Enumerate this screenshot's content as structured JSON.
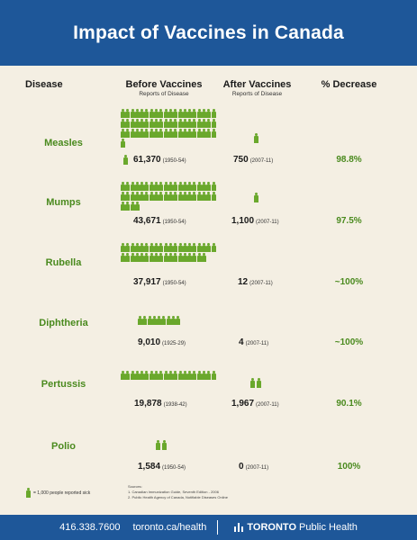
{
  "header": {
    "title": "Impact of Vaccines in Canada"
  },
  "columns": {
    "disease": "Disease",
    "before": "Before Vaccines",
    "before_sub": "Reports of Disease",
    "after": "After Vaccines",
    "after_sub": "Reports of Disease",
    "decrease": "% Decrease"
  },
  "rows": [
    {
      "disease": "Measles",
      "before_value": "61,370",
      "before_years": "(1950-54)",
      "after_value": "750",
      "after_years": "(2007-11)",
      "decrease": "98.8%"
    },
    {
      "disease": "Mumps",
      "before_value": "43,671",
      "before_years": "(1950-54)",
      "after_value": "1,100",
      "after_years": "(2007-11)",
      "decrease": "97.5%"
    },
    {
      "disease": "Rubella",
      "before_value": "37,917",
      "before_years": "(1950-54)",
      "after_value": "12",
      "after_years": "(2007-11)",
      "decrease": "~100%"
    },
    {
      "disease": "Diphtheria",
      "before_value": "9,010",
      "before_years": "(1925-29)",
      "after_value": "4",
      "after_years": "(2007-11)",
      "decrease": "~100%"
    },
    {
      "disease": "Pertussis",
      "before_value": "19,878",
      "before_years": "(1938-42)",
      "after_value": "1,967",
      "after_years": "(2007-11)",
      "decrease": "90.1%"
    },
    {
      "disease": "Polio",
      "before_value": "1,584",
      "before_years": "(1950-54)",
      "after_value": "0",
      "after_years": "(2007-11)",
      "decrease": "100%"
    }
  ],
  "legend": {
    "text": "= 1,000 people reported sick",
    "icon": "person-icon",
    "color": "#6aa82c"
  },
  "sources": {
    "heading": "Sources:",
    "line1": "1. Canadian Immunization Guide, Seventh Edition - 2006",
    "line2": "2. Public Health Agency of Canada, Notifiable Diseases Online"
  },
  "footer": {
    "phone": "416.338.7600",
    "url": "toronto.ca/health",
    "brand_bold": "TORONTO",
    "brand_rest": "Public Health"
  },
  "colors": {
    "header_blue": "#1e5799",
    "green": "#4a8a1e",
    "background": "#f4efe3"
  }
}
